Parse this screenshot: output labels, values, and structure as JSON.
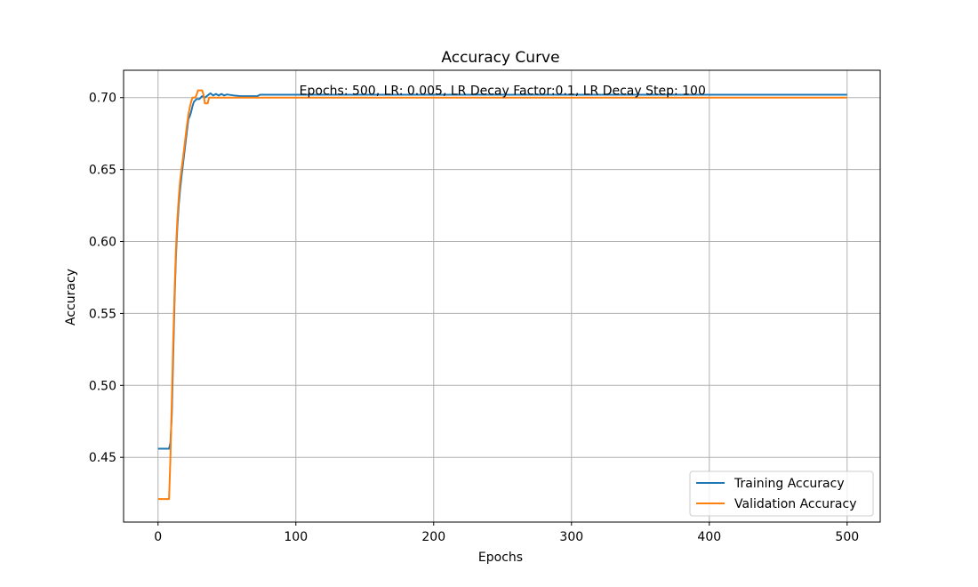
{
  "chart_data": {
    "type": "line",
    "title": "Accuracy Curve",
    "xlabel": "Epochs",
    "ylabel": "Accuracy",
    "xlim": [
      -25,
      524
    ],
    "ylim": [
      0.405,
      0.719
    ],
    "xticks": [
      0,
      100,
      200,
      300,
      400,
      500
    ],
    "xtick_labels": [
      "0",
      "100",
      "200",
      "300",
      "400",
      "500"
    ],
    "yticks": [
      0.45,
      0.5,
      0.55,
      0.6,
      0.65,
      0.7
    ],
    "ytick_labels": [
      "0.45",
      "0.50",
      "0.55",
      "0.60",
      "0.65",
      "0.70"
    ],
    "grid": true,
    "legend_position": "lower-right",
    "annotation": {
      "text": "Epochs: 500, LR: 0.005, LR Decay Factor:0.1, LR Decay Step: 100",
      "x": 250,
      "y": 0.702
    },
    "series": [
      {
        "name": "Training Accuracy",
        "color": "#1f77b4",
        "points": [
          [
            0,
            0.456
          ],
          [
            8,
            0.456
          ],
          [
            9,
            0.46
          ],
          [
            10,
            0.48
          ],
          [
            11,
            0.52
          ],
          [
            12,
            0.56
          ],
          [
            13,
            0.59
          ],
          [
            14,
            0.61
          ],
          [
            15,
            0.625
          ],
          [
            16,
            0.636
          ],
          [
            17,
            0.645
          ],
          [
            18,
            0.653
          ],
          [
            19,
            0.661
          ],
          [
            20,
            0.669
          ],
          [
            21,
            0.677
          ],
          [
            22,
            0.685
          ],
          [
            23,
            0.687
          ],
          [
            24,
            0.69
          ],
          [
            25,
            0.694
          ],
          [
            26,
            0.697
          ],
          [
            27,
            0.698
          ],
          [
            28,
            0.699
          ],
          [
            30,
            0.699
          ],
          [
            32,
            0.701
          ],
          [
            34,
            0.7
          ],
          [
            36,
            0.7015
          ],
          [
            38,
            0.703
          ],
          [
            40,
            0.7015
          ],
          [
            42,
            0.7025
          ],
          [
            44,
            0.7015
          ],
          [
            46,
            0.7025
          ],
          [
            48,
            0.7015
          ],
          [
            50,
            0.7022
          ],
          [
            55,
            0.7015
          ],
          [
            60,
            0.701
          ],
          [
            72,
            0.701
          ],
          [
            74,
            0.702
          ],
          [
            500,
            0.702
          ]
        ]
      },
      {
        "name": "Validation Accuracy",
        "color": "#ff7f0e",
        "points": [
          [
            0,
            0.421
          ],
          [
            8,
            0.421
          ],
          [
            9,
            0.45
          ],
          [
            10,
            0.49
          ],
          [
            11,
            0.53
          ],
          [
            12,
            0.565
          ],
          [
            13,
            0.595
          ],
          [
            14,
            0.615
          ],
          [
            15,
            0.63
          ],
          [
            16,
            0.642
          ],
          [
            17,
            0.65
          ],
          [
            18,
            0.657
          ],
          [
            19,
            0.665
          ],
          [
            20,
            0.673
          ],
          [
            21,
            0.681
          ],
          [
            22,
            0.688
          ],
          [
            23,
            0.693
          ],
          [
            24,
            0.697
          ],
          [
            25,
            0.7
          ],
          [
            27,
            0.7
          ],
          [
            28,
            0.702
          ],
          [
            29,
            0.705
          ],
          [
            32,
            0.705
          ],
          [
            33,
            0.702
          ],
          [
            34,
            0.696
          ],
          [
            36,
            0.696
          ],
          [
            37,
            0.7
          ],
          [
            500,
            0.7
          ]
        ]
      }
    ]
  }
}
